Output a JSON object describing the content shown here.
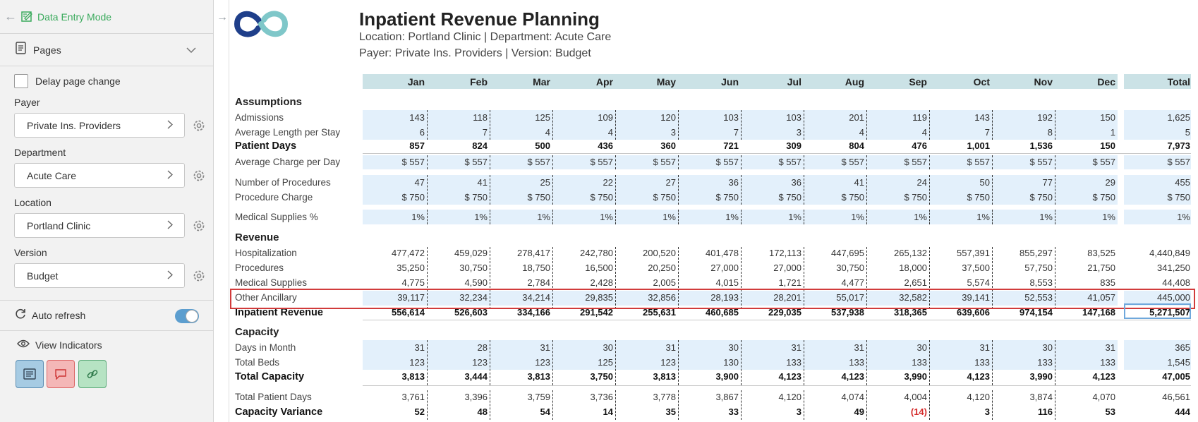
{
  "sidebar": {
    "mode_label": "Data Entry Mode",
    "pages_label": "Pages",
    "delay_label": "Delay page change",
    "fields": [
      {
        "label": "Payer",
        "value": "Private Ins. Providers"
      },
      {
        "label": "Department",
        "value": "Acute Care"
      },
      {
        "label": "Location",
        "value": "Portland Clinic"
      },
      {
        "label": "Version",
        "value": "Budget"
      }
    ],
    "auto_refresh_label": "Auto refresh",
    "view_indicators_label": "View Indicators"
  },
  "report": {
    "title": "Inpatient Revenue Planning",
    "subtitle1": "Location: Portland Clinic | Department: Acute Care",
    "subtitle2": "Payer: Private Ins. Providers | Version: Budget",
    "columns": [
      "Jan",
      "Feb",
      "Mar",
      "Apr",
      "May",
      "Jun",
      "Jul",
      "Aug",
      "Sep",
      "Oct",
      "Nov",
      "Dec",
      "Total"
    ],
    "rows": [
      {
        "key": "h_assump",
        "type": "section",
        "label": "Assumptions"
      },
      {
        "key": "admissions",
        "label": "Admissions",
        "values": [
          "143",
          "118",
          "125",
          "109",
          "120",
          "103",
          "103",
          "201",
          "119",
          "143",
          "192",
          "150",
          "1,625"
        ]
      },
      {
        "key": "alos",
        "label": "Average Length per Stay",
        "values": [
          "6",
          "7",
          "4",
          "4",
          "3",
          "7",
          "3",
          "4",
          "4",
          "7",
          "8",
          "1",
          "5"
        ]
      },
      {
        "key": "patient_days",
        "label": "Patient Days",
        "bold": true,
        "values": [
          "857",
          "824",
          "500",
          "436",
          "360",
          "721",
          "309",
          "804",
          "476",
          "1,001",
          "1,536",
          "150",
          "7,973"
        ]
      },
      {
        "key": "avg_charge",
        "label": "Average Charge per Day",
        "values": [
          "$ 557",
          "$ 557",
          "$ 557",
          "$ 557",
          "$ 557",
          "$ 557",
          "$ 557",
          "$ 557",
          "$ 557",
          "$ 557",
          "$ 557",
          "$ 557",
          "$ 557"
        ]
      },
      {
        "key": "num_proc",
        "label": "Number of Procedures",
        "values": [
          "47",
          "41",
          "25",
          "22",
          "27",
          "36",
          "36",
          "41",
          "24",
          "50",
          "77",
          "29",
          "455"
        ]
      },
      {
        "key": "proc_charge",
        "label": "Procedure Charge",
        "values": [
          "$ 750",
          "$ 750",
          "$ 750",
          "$ 750",
          "$ 750",
          "$ 750",
          "$ 750",
          "$ 750",
          "$ 750",
          "$ 750",
          "$ 750",
          "$ 750",
          "$ 750"
        ]
      },
      {
        "key": "med_pct",
        "label": "Medical Supplies %",
        "values": [
          "1%",
          "1%",
          "1%",
          "1%",
          "1%",
          "1%",
          "1%",
          "1%",
          "1%",
          "1%",
          "1%",
          "1%",
          "1%"
        ]
      },
      {
        "key": "h_rev",
        "type": "section",
        "label": "Revenue"
      },
      {
        "key": "hosp",
        "label": "Hospitalization",
        "values": [
          "477,472",
          "459,029",
          "278,417",
          "242,780",
          "200,520",
          "401,478",
          "172,113",
          "447,695",
          "265,132",
          "557,391",
          "855,297",
          "83,525",
          "4,440,849"
        ]
      },
      {
        "key": "procs",
        "label": "Procedures",
        "values": [
          "35,250",
          "30,750",
          "18,750",
          "16,500",
          "20,250",
          "27,000",
          "27,000",
          "30,750",
          "18,000",
          "37,500",
          "57,750",
          "21,750",
          "341,250"
        ]
      },
      {
        "key": "medsup",
        "label": "Medical Supplies",
        "values": [
          "4,775",
          "4,590",
          "2,784",
          "2,428",
          "2,005",
          "4,015",
          "1,721",
          "4,477",
          "2,651",
          "5,574",
          "8,553",
          "835",
          "44,408"
        ]
      },
      {
        "key": "other_anc",
        "label": "Other Ancillary",
        "values": [
          "39,117",
          "32,234",
          "34,214",
          "29,835",
          "32,856",
          "28,193",
          "28,201",
          "55,017",
          "32,582",
          "39,141",
          "52,553",
          "41,057",
          "445,000"
        ]
      },
      {
        "key": "inp_rev",
        "label": "Inpatient Revenue",
        "bold": true,
        "values": [
          "556,614",
          "526,603",
          "334,166",
          "291,542",
          "255,631",
          "460,685",
          "229,035",
          "537,938",
          "318,365",
          "639,606",
          "974,154",
          "147,168",
          "5,271,507"
        ]
      },
      {
        "key": "h_cap",
        "type": "section",
        "label": "Capacity"
      },
      {
        "key": "days_month",
        "label": "Days in Month",
        "values": [
          "31",
          "28",
          "31",
          "30",
          "31",
          "30",
          "31",
          "31",
          "30",
          "31",
          "30",
          "31",
          "365"
        ]
      },
      {
        "key": "beds",
        "label": "Total Beds",
        "values": [
          "123",
          "123",
          "123",
          "125",
          "123",
          "130",
          "133",
          "133",
          "133",
          "133",
          "133",
          "133",
          "1,545"
        ]
      },
      {
        "key": "total_cap",
        "label": "Total Capacity",
        "bold": true,
        "values": [
          "3,813",
          "3,444",
          "3,813",
          "3,750",
          "3,813",
          "3,900",
          "4,123",
          "4,123",
          "3,990",
          "4,123",
          "3,990",
          "4,123",
          "47,005"
        ]
      },
      {
        "key": "tpd",
        "label": "Total Patient Days",
        "values": [
          "3,761",
          "3,396",
          "3,759",
          "3,736",
          "3,778",
          "3,867",
          "4,120",
          "4,074",
          "4,004",
          "4,120",
          "3,874",
          "4,070",
          "46,561"
        ]
      },
      {
        "key": "cap_var",
        "label": "Capacity Variance",
        "bold": true,
        "values": [
          "52",
          "48",
          "54",
          "14",
          "35",
          "33",
          "3",
          "49",
          "(14)",
          "3",
          "116",
          "53",
          "444"
        ]
      }
    ]
  },
  "colors": {
    "accent_green": "#3aaa5c",
    "band_blue": "#e3f0fb",
    "header_teal": "#cbe2e6",
    "negative": "#d42a2a",
    "highlight": "#d13b3b"
  }
}
